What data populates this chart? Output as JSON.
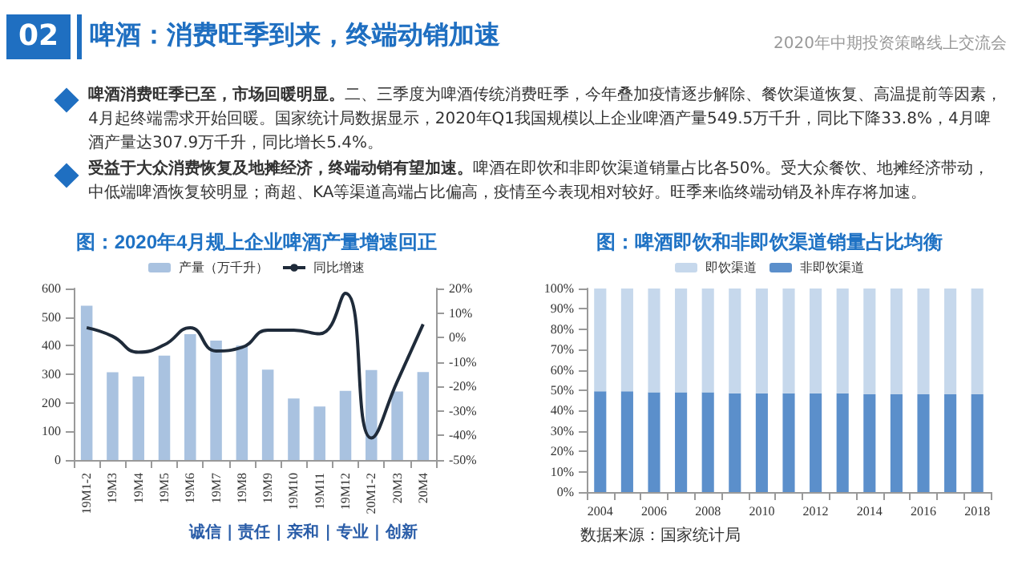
{
  "chart_data": [
    {
      "type": "bar",
      "title": "图：2020年4月规上企业啤酒产量增速回正",
      "annotations": [
        "02",
        "啤酒：消费旺季到来，终端动销加速",
        "2020年中期投资策略线上交流会",
        "啤酒消费旺季已至，市场回暖明显。",
        "二、三季度为啤酒传统消费旺季，今年叠加疫情逐步解除、餐饮渠道恢复、高温提前等因素，4月起终端需求开始回暖。国家统计局数据显示，2020年Q1我国规模以上企业啤酒产量549.5万千升，同比下降33.8%，4月啤酒产量达307.9万千升，同比增长5.4%。",
        "受益于大众消费恢复及地摊经济，终端动销有望加速。",
        "啤酒在即饮和非即饮渠道销量占比各50%。受大众餐饮、地摊经济带动，中低端啤酒恢复较明显；商超、KA等渠道高端占比偏高，疫情至今表现相对较好。旺季来临终端动销及补库存将加速。",
        "诚信 | 责任 | 亲和 | 专业 | 创新"
      ],
      "categories": [
        "19M1-2",
        "19M3",
        "19M4",
        "19M5",
        "19M6",
        "19M7",
        "19M8",
        "19M9",
        "19M10",
        "19M11",
        "19M12",
        "20M1-2",
        "20M3",
        "20M4"
      ],
      "series": [
        {
          "name": "产量（万千升）",
          "type": "bar",
          "color": "#a9c2e0",
          "values": [
            540,
            307,
            292,
            365,
            440,
            418,
            400,
            316,
            215,
            187,
            242,
            315,
            240,
            308
          ]
        },
        {
          "name": "同比增速",
          "type": "line",
          "axis": "y2",
          "color": "#1f2b3a",
          "values": [
            4,
            0.5,
            -6,
            -3,
            4,
            -5.5,
            -4,
            3,
            3,
            1.5,
            18,
            -41,
            -18,
            5.4
          ]
        }
      ],
      "ylim": [
        0,
        600
      ],
      "yticks": [
        0,
        100,
        200,
        300,
        400,
        500,
        600
      ],
      "y2lim": [
        -50,
        20
      ],
      "y2ticks": [
        {
          "value": -50,
          "label": "-50%"
        },
        {
          "value": -40,
          "label": "-40%"
        },
        {
          "value": -30,
          "label": "-30%"
        },
        {
          "value": -20,
          "label": "-20%"
        },
        {
          "value": -10,
          "label": "-10%"
        },
        {
          "value": 0,
          "label": "0%"
        },
        {
          "value": 10,
          "label": "10%"
        },
        {
          "value": 20,
          "label": "20%"
        }
      ],
      "legend": "top"
    },
    {
      "type": "bar",
      "title": "图：啤酒即饮和非即饮渠道销量占比均衡",
      "stacked": true,
      "annotations": [
        "数据来源：国家统计局"
      ],
      "categories": [
        "2004",
        null,
        "2006",
        null,
        "2008",
        null,
        "2010",
        null,
        "2012",
        null,
        "2014",
        null,
        "2016",
        null,
        "2018"
      ],
      "series": [
        {
          "name": "非即饮渠道",
          "color": "#5b8fcb",
          "values": [
            49.5,
            49.5,
            49,
            49,
            49,
            48.5,
            48.5,
            48.5,
            48.5,
            48.5,
            48,
            48,
            48,
            48,
            48
          ]
        },
        {
          "name": "即饮渠道",
          "color": "#c6d8ec",
          "values": [
            50.5,
            50.5,
            51,
            51,
            51,
            51.5,
            51.5,
            51.5,
            51.5,
            51.5,
            52,
            52,
            52,
            52,
            52
          ]
        }
      ],
      "ylim": [
        0,
        100
      ],
      "yticks": [
        {
          "value": 0,
          "label": "0%"
        },
        {
          "value": 10,
          "label": "10%"
        },
        {
          "value": 20,
          "label": "20%"
        },
        {
          "value": 30,
          "label": "30%"
        },
        {
          "value": 40,
          "label": "40%"
        },
        {
          "value": 50,
          "label": "50%"
        },
        {
          "value": 60,
          "label": "60%"
        },
        {
          "value": 70,
          "label": "70%"
        },
        {
          "value": 80,
          "label": "80%"
        },
        {
          "value": 90,
          "label": "90%"
        },
        {
          "value": 100,
          "label": "100%"
        }
      ],
      "legend": "top"
    }
  ]
}
